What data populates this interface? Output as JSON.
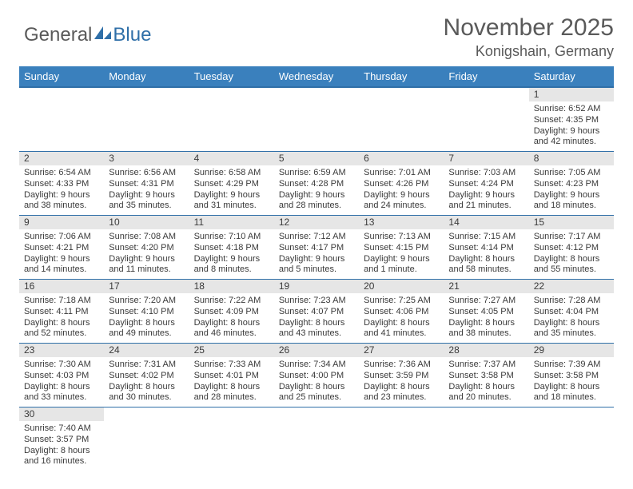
{
  "logo": {
    "general": "General",
    "blue": "Blue",
    "shape_color": "#2f6fa8"
  },
  "header": {
    "title": "November 2025",
    "location": "Konigshain, Germany"
  },
  "colors": {
    "header_row_bg": "#3a80bd",
    "daynum_bg": "#e6e6e6",
    "rule": "#2f6fa8"
  },
  "weekdays": [
    "Sunday",
    "Monday",
    "Tuesday",
    "Wednesday",
    "Thursday",
    "Friday",
    "Saturday"
  ],
  "first_day_index": 6,
  "days": [
    {
      "n": "1",
      "sunrise": "6:52 AM",
      "sunset": "4:35 PM",
      "daylight": "9 hours and 42 minutes."
    },
    {
      "n": "2",
      "sunrise": "6:54 AM",
      "sunset": "4:33 PM",
      "daylight": "9 hours and 38 minutes."
    },
    {
      "n": "3",
      "sunrise": "6:56 AM",
      "sunset": "4:31 PM",
      "daylight": "9 hours and 35 minutes."
    },
    {
      "n": "4",
      "sunrise": "6:58 AM",
      "sunset": "4:29 PM",
      "daylight": "9 hours and 31 minutes."
    },
    {
      "n": "5",
      "sunrise": "6:59 AM",
      "sunset": "4:28 PM",
      "daylight": "9 hours and 28 minutes."
    },
    {
      "n": "6",
      "sunrise": "7:01 AM",
      "sunset": "4:26 PM",
      "daylight": "9 hours and 24 minutes."
    },
    {
      "n": "7",
      "sunrise": "7:03 AM",
      "sunset": "4:24 PM",
      "daylight": "9 hours and 21 minutes."
    },
    {
      "n": "8",
      "sunrise": "7:05 AM",
      "sunset": "4:23 PM",
      "daylight": "9 hours and 18 minutes."
    },
    {
      "n": "9",
      "sunrise": "7:06 AM",
      "sunset": "4:21 PM",
      "daylight": "9 hours and 14 minutes."
    },
    {
      "n": "10",
      "sunrise": "7:08 AM",
      "sunset": "4:20 PM",
      "daylight": "9 hours and 11 minutes."
    },
    {
      "n": "11",
      "sunrise": "7:10 AM",
      "sunset": "4:18 PM",
      "daylight": "9 hours and 8 minutes."
    },
    {
      "n": "12",
      "sunrise": "7:12 AM",
      "sunset": "4:17 PM",
      "daylight": "9 hours and 5 minutes."
    },
    {
      "n": "13",
      "sunrise": "7:13 AM",
      "sunset": "4:15 PM",
      "daylight": "9 hours and 1 minute."
    },
    {
      "n": "14",
      "sunrise": "7:15 AM",
      "sunset": "4:14 PM",
      "daylight": "8 hours and 58 minutes."
    },
    {
      "n": "15",
      "sunrise": "7:17 AM",
      "sunset": "4:12 PM",
      "daylight": "8 hours and 55 minutes."
    },
    {
      "n": "16",
      "sunrise": "7:18 AM",
      "sunset": "4:11 PM",
      "daylight": "8 hours and 52 minutes."
    },
    {
      "n": "17",
      "sunrise": "7:20 AM",
      "sunset": "4:10 PM",
      "daylight": "8 hours and 49 minutes."
    },
    {
      "n": "18",
      "sunrise": "7:22 AM",
      "sunset": "4:09 PM",
      "daylight": "8 hours and 46 minutes."
    },
    {
      "n": "19",
      "sunrise": "7:23 AM",
      "sunset": "4:07 PM",
      "daylight": "8 hours and 43 minutes."
    },
    {
      "n": "20",
      "sunrise": "7:25 AM",
      "sunset": "4:06 PM",
      "daylight": "8 hours and 41 minutes."
    },
    {
      "n": "21",
      "sunrise": "7:27 AM",
      "sunset": "4:05 PM",
      "daylight": "8 hours and 38 minutes."
    },
    {
      "n": "22",
      "sunrise": "7:28 AM",
      "sunset": "4:04 PM",
      "daylight": "8 hours and 35 minutes."
    },
    {
      "n": "23",
      "sunrise": "7:30 AM",
      "sunset": "4:03 PM",
      "daylight": "8 hours and 33 minutes."
    },
    {
      "n": "24",
      "sunrise": "7:31 AM",
      "sunset": "4:02 PM",
      "daylight": "8 hours and 30 minutes."
    },
    {
      "n": "25",
      "sunrise": "7:33 AM",
      "sunset": "4:01 PM",
      "daylight": "8 hours and 28 minutes."
    },
    {
      "n": "26",
      "sunrise": "7:34 AM",
      "sunset": "4:00 PM",
      "daylight": "8 hours and 25 minutes."
    },
    {
      "n": "27",
      "sunrise": "7:36 AM",
      "sunset": "3:59 PM",
      "daylight": "8 hours and 23 minutes."
    },
    {
      "n": "28",
      "sunrise": "7:37 AM",
      "sunset": "3:58 PM",
      "daylight": "8 hours and 20 minutes."
    },
    {
      "n": "29",
      "sunrise": "7:39 AM",
      "sunset": "3:58 PM",
      "daylight": "8 hours and 18 minutes."
    },
    {
      "n": "30",
      "sunrise": "7:40 AM",
      "sunset": "3:57 PM",
      "daylight": "8 hours and 16 minutes."
    }
  ],
  "labels": {
    "sunrise": "Sunrise:",
    "sunset": "Sunset:",
    "daylight": "Daylight:"
  }
}
